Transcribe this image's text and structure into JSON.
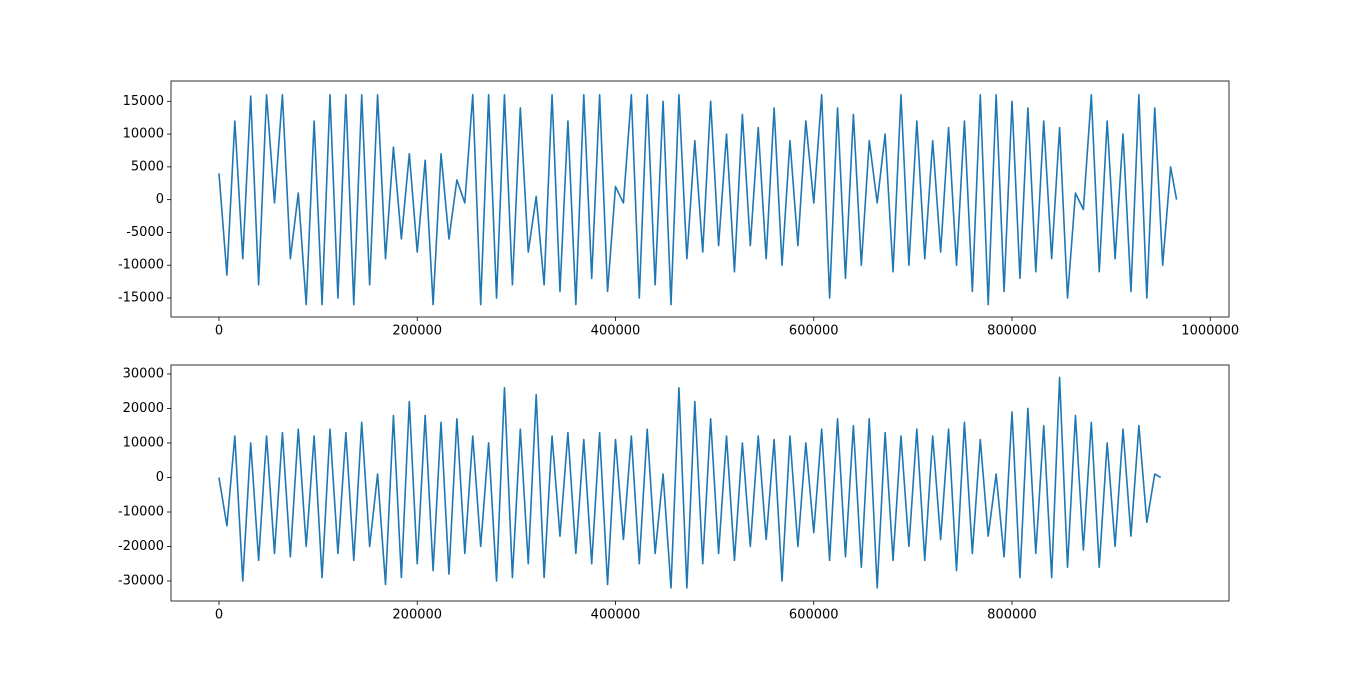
{
  "chart_data": [
    {
      "type": "line",
      "color": "#1f77b4",
      "x": [
        0,
        8000,
        16000,
        24000,
        32000,
        40000,
        48000,
        56000,
        64000,
        72000,
        80000,
        88000,
        96000,
        104000,
        112000,
        120000,
        128000,
        136000,
        144000,
        152000,
        160000,
        168000,
        176000,
        184000,
        192000,
        200000,
        208000,
        216000,
        224000,
        232000,
        240000,
        248000,
        256000,
        264000,
        272000,
        280000,
        288000,
        296000,
        304000,
        312000,
        320000,
        328000,
        336000,
        344000,
        352000,
        360000,
        368000,
        376000,
        384000,
        392000,
        400000,
        408000,
        416000,
        424000,
        432000,
        440000,
        448000,
        456000,
        464000,
        472000,
        480000,
        488000,
        496000,
        504000,
        512000,
        520000,
        528000,
        536000,
        544000,
        552000,
        560000,
        568000,
        576000,
        584000,
        592000,
        600000,
        608000,
        616000,
        624000,
        632000,
        640000,
        648000,
        656000,
        664000,
        672000,
        680000,
        688000,
        696000,
        704000,
        712000,
        720000,
        728000,
        736000,
        744000,
        752000,
        760000,
        768000,
        776000,
        784000,
        792000,
        800000,
        808000,
        816000,
        824000,
        832000,
        840000,
        848000,
        856000,
        864000,
        872000,
        880000,
        888000,
        896000,
        904000,
        912000,
        920000,
        928000,
        936000,
        944000,
        952000,
        960000,
        966000
      ],
      "values": [
        4000,
        -11500,
        12000,
        -9000,
        15800,
        -13000,
        16000,
        -500,
        16000,
        -9000,
        1000,
        -16000,
        12000,
        -16000,
        16000,
        -15000,
        16000,
        -16000,
        16000,
        -13000,
        16000,
        -9000,
        8000,
        -6000,
        7000,
        -8000,
        6000,
        -16000,
        7000,
        -6000,
        3000,
        -500,
        16000,
        -16000,
        16000,
        -15000,
        16000,
        -13000,
        14000,
        -8000,
        500,
        -13000,
        16000,
        -14000,
        12000,
        -16000,
        16000,
        -12000,
        16000,
        -14000,
        2000,
        -500,
        16000,
        -15000,
        16000,
        -13000,
        15000,
        -16000,
        16000,
        -9000,
        9000,
        -8000,
        15000,
        -7000,
        10000,
        -11000,
        13000,
        -7000,
        11000,
        -9000,
        14000,
        -10000,
        9000,
        -7000,
        12000,
        -500,
        16000,
        -15000,
        14000,
        -12000,
        13000,
        -10000,
        9000,
        -500,
        10000,
        -11000,
        16000,
        -10000,
        12000,
        -9000,
        9000,
        -8000,
        11000,
        -10000,
        12000,
        -14000,
        16000,
        -16000,
        16000,
        -14000,
        15000,
        -12000,
        14000,
        -11000,
        12000,
        -9000,
        11000,
        -15000,
        1000,
        -1500,
        16000,
        -11000,
        12000,
        -9000,
        10000,
        -14000,
        16000,
        -15000,
        14000,
        -10000,
        5000,
        0
      ],
      "xlim": [
        -48400,
        1018900
      ],
      "ylim": [
        -17900,
        18100
      ],
      "xticks": [
        0,
        200000,
        400000,
        600000,
        800000,
        1000000
      ],
      "yticks": [
        -15000,
        -10000,
        -5000,
        0,
        5000,
        10000,
        15000
      ]
    },
    {
      "type": "line",
      "color": "#1f77b4",
      "x": [
        0,
        8000,
        16000,
        24000,
        32000,
        40000,
        48000,
        56000,
        64000,
        72000,
        80000,
        88000,
        96000,
        104000,
        112000,
        120000,
        128000,
        136000,
        144000,
        152000,
        160000,
        168000,
        176000,
        184000,
        192000,
        200000,
        208000,
        216000,
        224000,
        232000,
        240000,
        248000,
        256000,
        264000,
        272000,
        280000,
        288000,
        296000,
        304000,
        312000,
        320000,
        328000,
        336000,
        344000,
        352000,
        360000,
        368000,
        376000,
        384000,
        392000,
        400000,
        408000,
        416000,
        424000,
        432000,
        440000,
        448000,
        456000,
        464000,
        472000,
        480000,
        488000,
        496000,
        504000,
        512000,
        520000,
        528000,
        536000,
        544000,
        552000,
        560000,
        568000,
        576000,
        584000,
        592000,
        600000,
        608000,
        616000,
        624000,
        632000,
        640000,
        648000,
        656000,
        664000,
        672000,
        680000,
        688000,
        696000,
        704000,
        712000,
        720000,
        728000,
        736000,
        744000,
        752000,
        760000,
        768000,
        776000,
        784000,
        792000,
        800000,
        808000,
        816000,
        824000,
        832000,
        840000,
        848000,
        856000,
        864000,
        872000,
        880000,
        888000,
        896000,
        904000,
        912000,
        920000,
        928000,
        936000,
        944000,
        950000
      ],
      "values": [
        0,
        -14000,
        12000,
        -30000,
        10000,
        -24000,
        12000,
        -22000,
        13000,
        -23000,
        14000,
        -20000,
        12000,
        -29000,
        14000,
        -22000,
        13000,
        -24000,
        16000,
        -20000,
        1000,
        -31000,
        18000,
        -29000,
        22000,
        -25000,
        18000,
        -27000,
        16000,
        -28000,
        17000,
        -22000,
        12000,
        -20000,
        10000,
        -30000,
        26000,
        -29000,
        14000,
        -25000,
        24000,
        -29000,
        12000,
        -17000,
        13000,
        -22000,
        11000,
        -25000,
        13000,
        -31000,
        11000,
        -18000,
        12000,
        -25000,
        14000,
        -22000,
        1000,
        -32000,
        26000,
        -32000,
        22000,
        -25000,
        17000,
        -22000,
        12000,
        -24000,
        10000,
        -20000,
        12000,
        -18000,
        11000,
        -30000,
        12000,
        -20000,
        10000,
        -16000,
        14000,
        -24000,
        17000,
        -23000,
        15000,
        -26000,
        17000,
        -32000,
        13000,
        -24000,
        12000,
        -20000,
        14000,
        -24000,
        12000,
        -18000,
        14000,
        -27000,
        16000,
        -22000,
        11000,
        -17000,
        1000,
        -23000,
        19000,
        -29000,
        20000,
        -22000,
        15000,
        -29000,
        29000,
        -26000,
        18000,
        -21000,
        16000,
        -26000,
        10000,
        -20000,
        14000,
        -17000,
        15000,
        -13000,
        1000,
        0
      ],
      "xlim": [
        -48400,
        1018900
      ],
      "ylim": [
        -35800,
        32600
      ],
      "xticks": [
        0,
        200000,
        400000,
        600000,
        800000
      ],
      "yticks": [
        -30000,
        -20000,
        -10000,
        0,
        10000,
        20000,
        30000
      ]
    }
  ]
}
